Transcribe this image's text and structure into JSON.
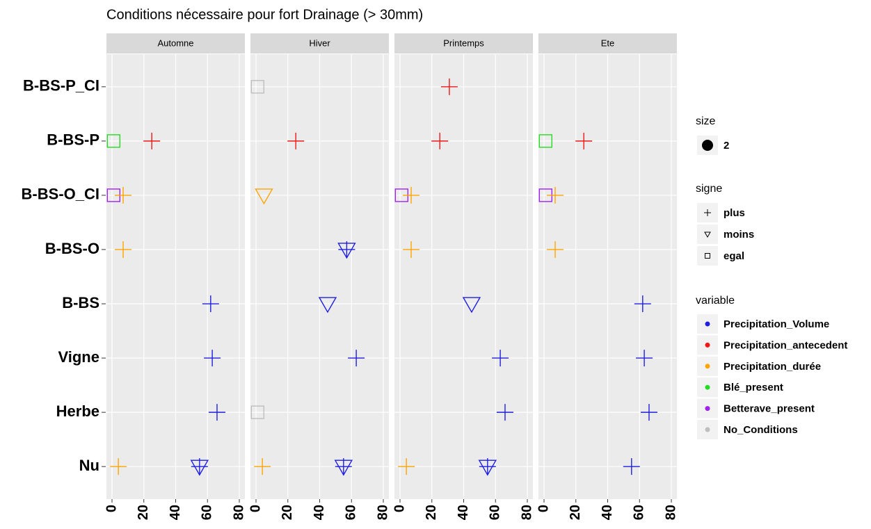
{
  "chart_data": {
    "type": "scatter",
    "title": "Conditions nécessaire pour fort Drainage (> 30mm)",
    "categories": [
      "B-BS-P_CI",
      "B-BS-P",
      "B-BS-O_CI",
      "B-BS-O",
      "B-BS",
      "Vigne",
      "Herbe",
      "Nu"
    ],
    "xlim": [
      -3.5,
      83.5
    ],
    "xticks": [
      0,
      20,
      40,
      60,
      80
    ],
    "grid": true,
    "size_legend": {
      "title": "size",
      "label": "2"
    },
    "shapes": {
      "title": "signe",
      "items": [
        "plus",
        "moins",
        "egal"
      ]
    },
    "series_title": "variable",
    "series": [
      {
        "name": "Precipitation_Volume",
        "color": "#1f1fe0"
      },
      {
        "name": "Precipitation_antecedent",
        "color": "#f01818"
      },
      {
        "name": "Precipitation_durée",
        "color": "#ffa500"
      },
      {
        "name": "Blé_present",
        "color": "#22dd22"
      },
      {
        "name": "Betterave_present",
        "color": "#a020f0"
      },
      {
        "name": "No_Conditions",
        "color": "#bebebe"
      }
    ],
    "facets": [
      {
        "name": "Automne",
        "points": [
          {
            "y": "B-BS-P",
            "x": 1,
            "variable": "Blé_present",
            "signe": "egal"
          },
          {
            "y": "B-BS-P",
            "x": 25,
            "variable": "Precipitation_antecedent",
            "signe": "plus"
          },
          {
            "y": "B-BS-O_CI",
            "x": 1,
            "variable": "Betterave_present",
            "signe": "egal"
          },
          {
            "y": "B-BS-O_CI",
            "x": 7,
            "variable": "Precipitation_durée",
            "signe": "plus"
          },
          {
            "y": "B-BS-O",
            "x": 7,
            "variable": "Precipitation_durée",
            "signe": "plus"
          },
          {
            "y": "B-BS",
            "x": 62,
            "variable": "Precipitation_Volume",
            "signe": "plus"
          },
          {
            "y": "Vigne",
            "x": 63,
            "variable": "Precipitation_Volume",
            "signe": "plus"
          },
          {
            "y": "Herbe",
            "x": 66,
            "variable": "Precipitation_Volume",
            "signe": "plus"
          },
          {
            "y": "Nu",
            "x": 4,
            "variable": "Precipitation_durée",
            "signe": "plus"
          },
          {
            "y": "Nu",
            "x": 55,
            "variable": "Precipitation_Volume",
            "signe": "plus"
          },
          {
            "y": "Nu",
            "x": 55,
            "variable": "Precipitation_Volume",
            "signe": "moins"
          }
        ]
      },
      {
        "name": "Hiver",
        "points": [
          {
            "y": "B-BS-P_CI",
            "x": 1,
            "variable": "No_Conditions",
            "signe": "egal"
          },
          {
            "y": "B-BS-P",
            "x": 25,
            "variable": "Precipitation_antecedent",
            "signe": "plus"
          },
          {
            "y": "B-BS-O_CI",
            "x": 5,
            "variable": "Precipitation_durée",
            "signe": "moins"
          },
          {
            "y": "B-BS-O",
            "x": 57,
            "variable": "Precipitation_Volume",
            "signe": "plus"
          },
          {
            "y": "B-BS-O",
            "x": 57,
            "variable": "Precipitation_Volume",
            "signe": "moins"
          },
          {
            "y": "B-BS",
            "x": 45,
            "variable": "Precipitation_Volume",
            "signe": "moins"
          },
          {
            "y": "Vigne",
            "x": 63,
            "variable": "Precipitation_Volume",
            "signe": "plus"
          },
          {
            "y": "Herbe",
            "x": 1,
            "variable": "No_Conditions",
            "signe": "egal"
          },
          {
            "y": "Nu",
            "x": 4,
            "variable": "Precipitation_durée",
            "signe": "plus"
          },
          {
            "y": "Nu",
            "x": 55,
            "variable": "Precipitation_Volume",
            "signe": "plus"
          },
          {
            "y": "Nu",
            "x": 55,
            "variable": "Precipitation_Volume",
            "signe": "moins"
          }
        ]
      },
      {
        "name": "Printemps",
        "points": [
          {
            "y": "B-BS-P_CI",
            "x": 31,
            "variable": "Precipitation_antecedent",
            "signe": "plus"
          },
          {
            "y": "B-BS-P",
            "x": 25,
            "variable": "Precipitation_antecedent",
            "signe": "plus"
          },
          {
            "y": "B-BS-O_CI",
            "x": 1,
            "variable": "Betterave_present",
            "signe": "egal"
          },
          {
            "y": "B-BS-O_CI",
            "x": 7,
            "variable": "Precipitation_durée",
            "signe": "plus"
          },
          {
            "y": "B-BS-O",
            "x": 7,
            "variable": "Precipitation_durée",
            "signe": "plus"
          },
          {
            "y": "B-BS",
            "x": 45,
            "variable": "Precipitation_Volume",
            "signe": "moins"
          },
          {
            "y": "Vigne",
            "x": 63,
            "variable": "Precipitation_Volume",
            "signe": "plus"
          },
          {
            "y": "Herbe",
            "x": 66,
            "variable": "Precipitation_Volume",
            "signe": "plus"
          },
          {
            "y": "Nu",
            "x": 4,
            "variable": "Precipitation_durée",
            "signe": "plus"
          },
          {
            "y": "Nu",
            "x": 55,
            "variable": "Precipitation_Volume",
            "signe": "plus"
          },
          {
            "y": "Nu",
            "x": 55,
            "variable": "Precipitation_Volume",
            "signe": "moins"
          }
        ]
      },
      {
        "name": "Ete",
        "points": [
          {
            "y": "B-BS-P",
            "x": 1,
            "variable": "Blé_present",
            "signe": "egal"
          },
          {
            "y": "B-BS-P",
            "x": 25,
            "variable": "Precipitation_antecedent",
            "signe": "plus"
          },
          {
            "y": "B-BS-O_CI",
            "x": 1,
            "variable": "Betterave_present",
            "signe": "egal"
          },
          {
            "y": "B-BS-O_CI",
            "x": 7,
            "variable": "Precipitation_durée",
            "signe": "plus"
          },
          {
            "y": "B-BS-O",
            "x": 7,
            "variable": "Precipitation_durée",
            "signe": "plus"
          },
          {
            "y": "B-BS",
            "x": 62,
            "variable": "Precipitation_Volume",
            "signe": "plus"
          },
          {
            "y": "Vigne",
            "x": 63,
            "variable": "Precipitation_Volume",
            "signe": "plus"
          },
          {
            "y": "Herbe",
            "x": 66,
            "variable": "Precipitation_Volume",
            "signe": "plus"
          },
          {
            "y": "Nu",
            "x": 55,
            "variable": "Precipitation_Volume",
            "signe": "plus"
          }
        ]
      }
    ]
  }
}
